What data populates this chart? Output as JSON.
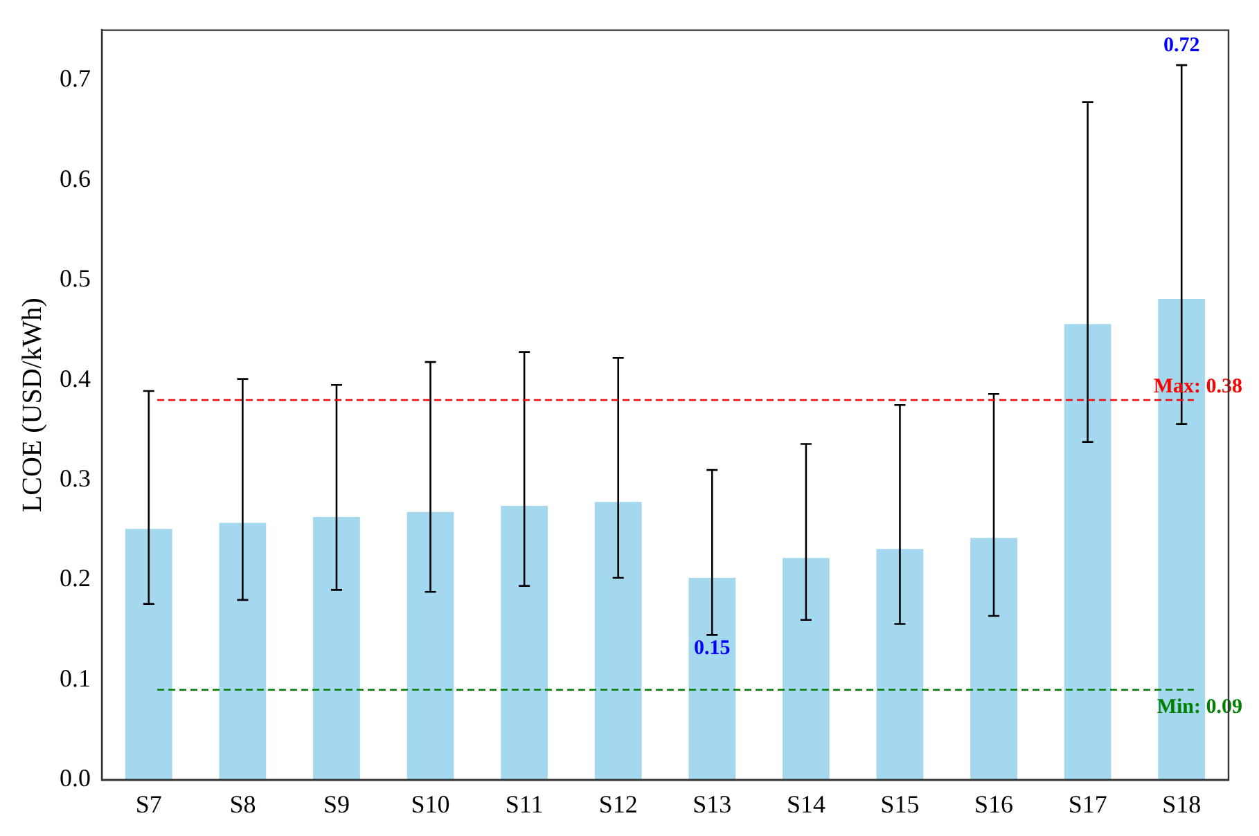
{
  "chart_data": {
    "type": "bar",
    "ylabel": "LCOE (USD/kWh)",
    "categories": [
      "S7",
      "S8",
      "S9",
      "S10",
      "S11",
      "S12",
      "S13",
      "S14",
      "S15",
      "S16",
      "S17",
      "S18"
    ],
    "values": [
      0.251,
      0.257,
      0.263,
      0.268,
      0.274,
      0.278,
      0.202,
      0.222,
      0.231,
      0.242,
      0.456,
      0.481
    ],
    "errors": [
      [
        0.176,
        0.389
      ],
      [
        0.18,
        0.401
      ],
      [
        0.19,
        0.395
      ],
      [
        0.188,
        0.418
      ],
      [
        0.194,
        0.428
      ],
      [
        0.202,
        0.422
      ],
      [
        0.145,
        0.31
      ],
      [
        0.16,
        0.336
      ],
      [
        0.156,
        0.375
      ],
      [
        0.164,
        0.386
      ],
      [
        0.338,
        0.678
      ],
      [
        0.356,
        0.715
      ]
    ],
    "color": "#a3d8ee",
    "ylim": [
      0,
      0.75
    ],
    "yticks": [
      {
        "value": 0,
        "label": "0.0"
      },
      0.1,
      0.2,
      0.3,
      0.4,
      0.5,
      0.6,
      0.7
    ],
    "grid": false,
    "legend": false,
    "ref_lines": [
      {
        "axis": "y",
        "value": 0.38,
        "label": "Max: 0.38",
        "color": "#ff0000",
        "line_style": "dashed"
      },
      {
        "axis": "y",
        "value": 0.09,
        "label": "Min: 0.09",
        "color": "#008000",
        "line_style": "dashed"
      }
    ],
    "annotations": [
      {
        "text": "0.72",
        "x": "S18",
        "y": 0.72
      },
      {
        "text": "0.15",
        "x": "S13",
        "y": 0.15
      }
    ]
  }
}
